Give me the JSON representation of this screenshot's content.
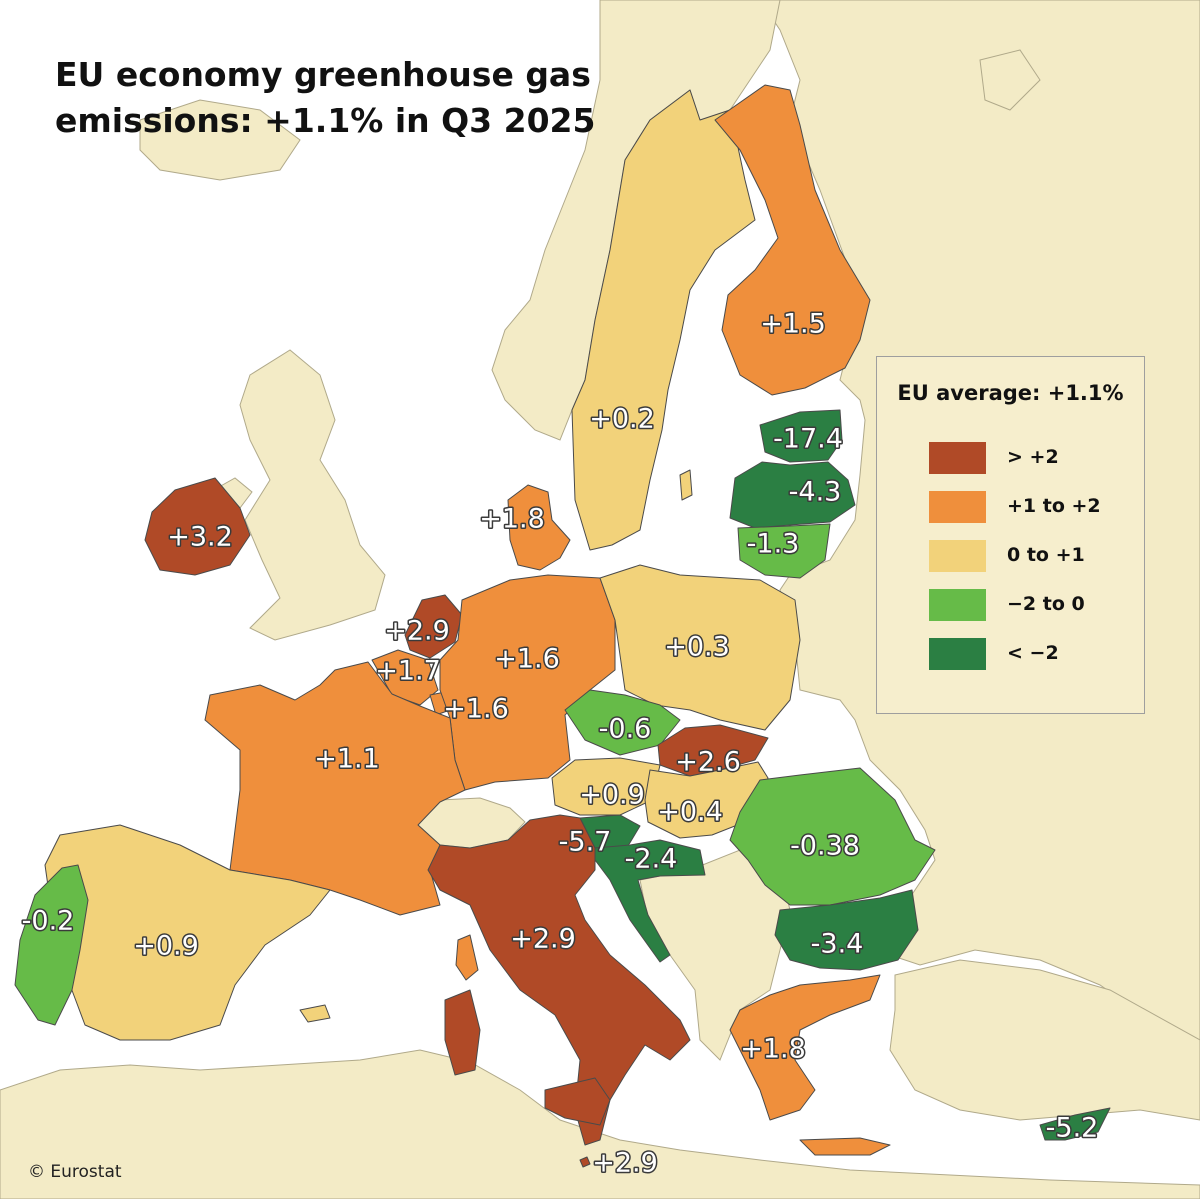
{
  "title_line1": "EU economy greenhouse gas",
  "title_line2": "emissions: +1.1% in Q3 2025",
  "credit": "© Eurostat",
  "legend": {
    "title": "EU average: +1.1%",
    "items": [
      {
        "label": ">  +2",
        "color": "#b04a27"
      },
      {
        "label": "+1 to +2",
        "color": "#ef8f3c"
      },
      {
        "label": "0 to +1",
        "color": "#f2d27a"
      },
      {
        "label": "−2 to 0",
        "color": "#66bb48"
      },
      {
        "label": "< −2",
        "color": "#2b7f43"
      }
    ]
  },
  "colors": {
    "sea": "#ffffff",
    "non_eu_land": "#f3ebc6",
    "border": "#4a4a4a"
  },
  "countries": {
    "ireland": {
      "value": "+3.2",
      "class": "> +2"
    },
    "portugal": {
      "value": "-0.2",
      "class": "-2 to 0"
    },
    "spain": {
      "value": "+0.9",
      "class": "0 to +1"
    },
    "france": {
      "value": "+1.1",
      "class": "+1 to +2"
    },
    "belgium": {
      "value": "+1.7",
      "class": "+1 to +2"
    },
    "netherlands": {
      "value": "+2.9",
      "class": "> +2"
    },
    "luxembourg": {
      "value": "+1.6",
      "class": "+1 to +2"
    },
    "germany": {
      "value": "+1.6",
      "class": "+1 to +2"
    },
    "denmark": {
      "value": "+1.8",
      "class": "+1 to +2"
    },
    "sweden": {
      "value": "+0.2",
      "class": "0 to +1"
    },
    "finland": {
      "value": "+1.5",
      "class": "+1 to +2"
    },
    "estonia": {
      "value": "-17.4",
      "class": "< -2"
    },
    "latvia": {
      "value": "-4.3",
      "class": "< -2"
    },
    "lithuania": {
      "value": "-1.3",
      "class": "-2 to 0"
    },
    "poland": {
      "value": "+0.3",
      "class": "0 to +1"
    },
    "czechia": {
      "value": "-0.6",
      "class": "-2 to 0"
    },
    "slovakia": {
      "value": "+2.6",
      "class": "> +2"
    },
    "austria": {
      "value": "+0.9",
      "class": "0 to +1"
    },
    "hungary": {
      "value": "+0.4",
      "class": "0 to +1"
    },
    "slovenia": {
      "value": "-5.7",
      "class": "< -2"
    },
    "croatia": {
      "value": "-2.4",
      "class": "< -2"
    },
    "romania": {
      "value": "-0.38",
      "class": "-2 to 0"
    },
    "bulgaria": {
      "value": "-3.4",
      "class": "< -2"
    },
    "italy": {
      "value": "+2.9",
      "class": "> +2"
    },
    "greece": {
      "value": "+1.8",
      "class": "+1 to +2"
    },
    "malta": {
      "value": "+2.9",
      "class": "> +2"
    },
    "cyprus": {
      "value": "-5.2",
      "class": "< -2"
    }
  }
}
